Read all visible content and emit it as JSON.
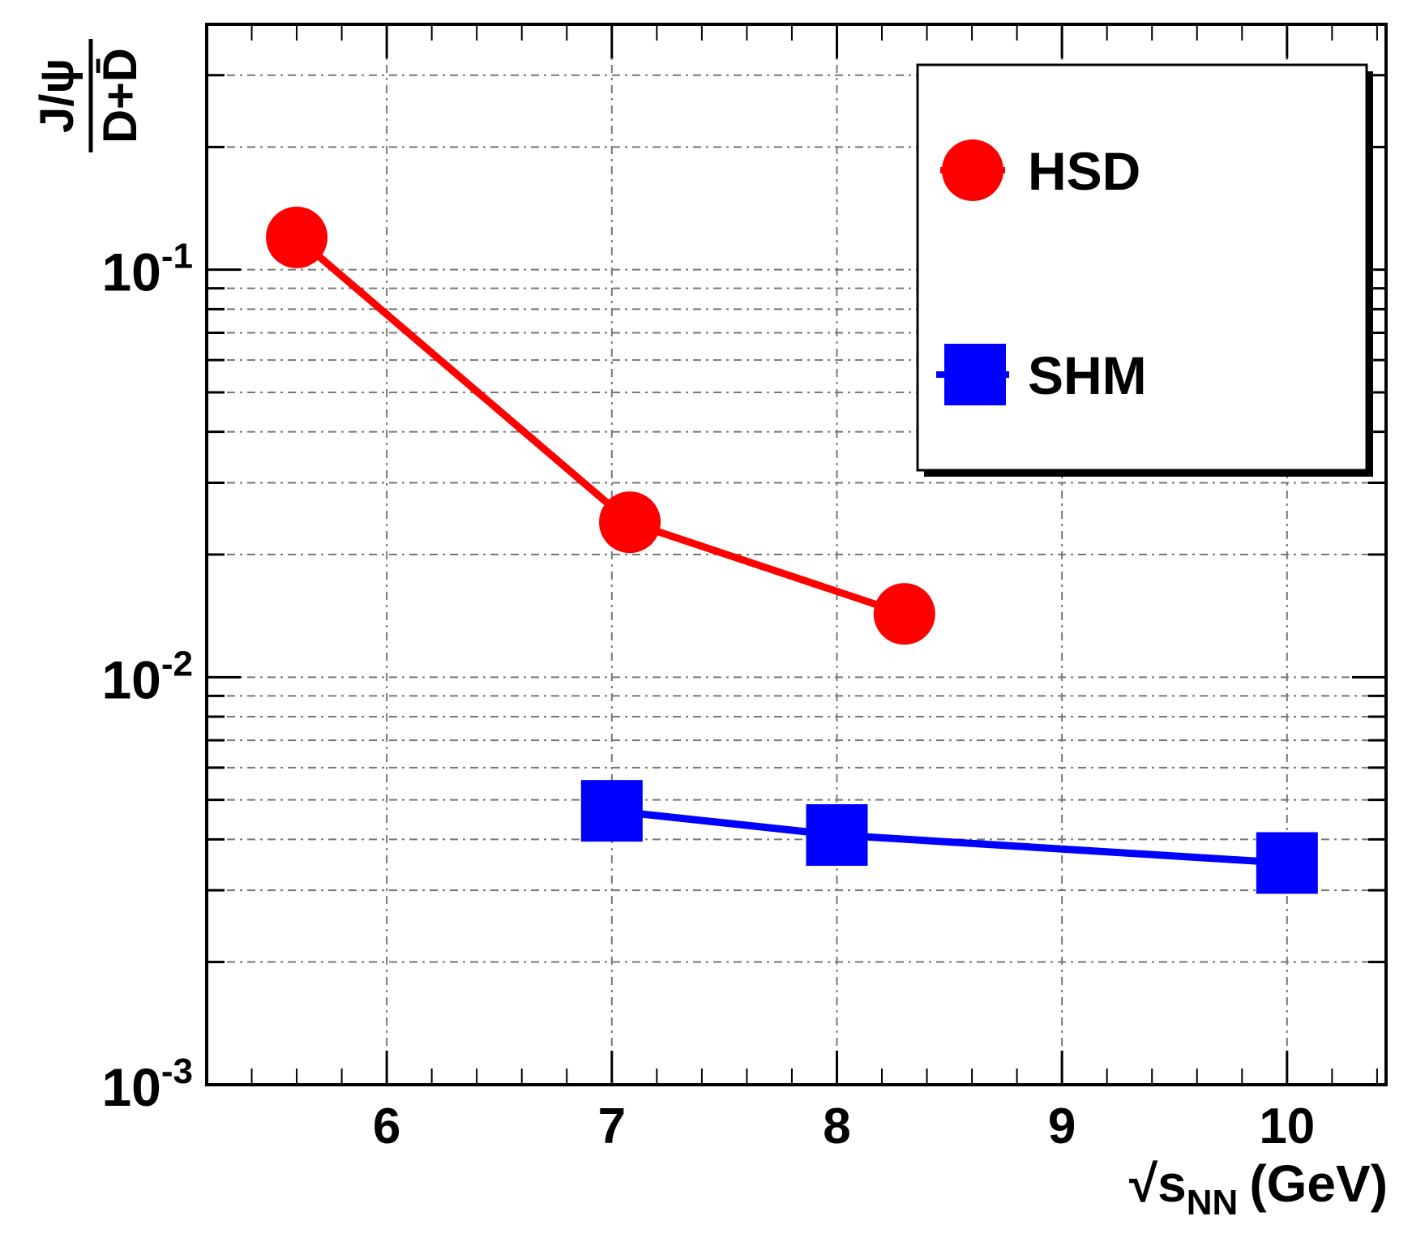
{
  "chart_data": {
    "type": "line",
    "x_scale": "linear",
    "y_scale": "log",
    "xlim": [
      5.2,
      10.44
    ],
    "ylim": [
      0.001,
      0.4
    ],
    "grid": true,
    "legend_position": "top-right",
    "xlabel": {
      "root": "√s",
      "sub": "NN",
      "unit": "(GeV)"
    },
    "ylabel": {
      "numerator": "J/ψ",
      "denominator": "D+D̄"
    },
    "x_ticks": [
      {
        "value": 6,
        "label": "6"
      },
      {
        "value": 7,
        "label": "7"
      },
      {
        "value": 8,
        "label": "8"
      },
      {
        "value": 9,
        "label": "9"
      },
      {
        "value": 10,
        "label": "10"
      }
    ],
    "y_ticks": [
      {
        "value": 0.1,
        "base": "10",
        "exp": "-1"
      },
      {
        "value": 0.01,
        "base": "10",
        "exp": "-2"
      },
      {
        "value": 0.001,
        "base": "10",
        "exp": "-3"
      }
    ],
    "series": [
      {
        "name": "HSD",
        "color": "#ff0000",
        "marker": "circle",
        "x": [
          5.6,
          7.08,
          8.3
        ],
        "y": [
          0.12,
          0.024,
          0.0143
        ]
      },
      {
        "name": "SHM",
        "color": "#0000ff",
        "marker": "square",
        "x": [
          7.0,
          8.0,
          10.0
        ],
        "y": [
          0.0047,
          0.0041,
          0.0035
        ]
      }
    ]
  }
}
